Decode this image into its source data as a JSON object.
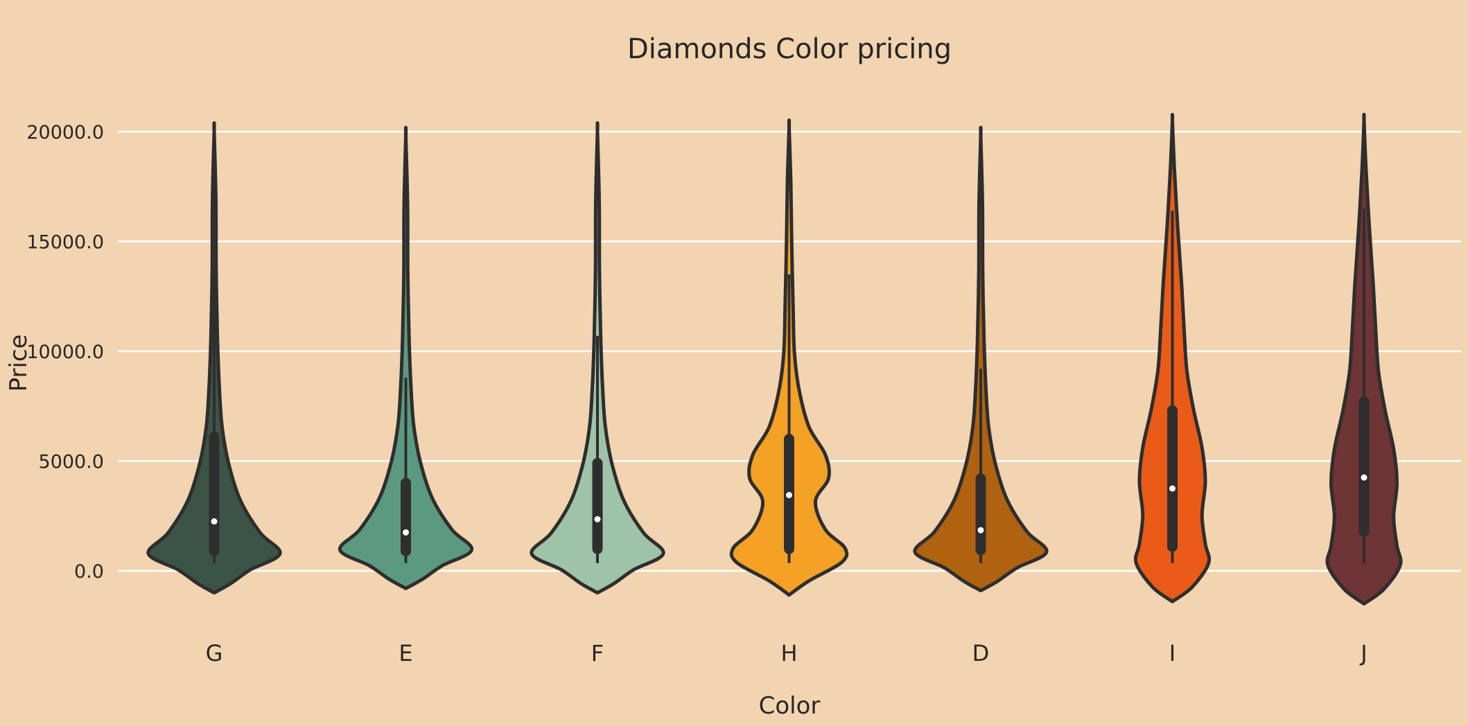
{
  "chart_data": {
    "type": "violin",
    "title": "Diamonds Color pricing",
    "xlabel": "Color",
    "ylabel": "Price",
    "ylim": [
      -3000,
      21500
    ],
    "yticks": [
      0,
      5000,
      10000,
      15000,
      20000
    ],
    "ytick_labels": [
      "0.0",
      "5000.0",
      "10000.0",
      "15000.0",
      "20000.0"
    ],
    "grid": true,
    "categories": [
      "G",
      "E",
      "F",
      "H",
      "D",
      "I",
      "J"
    ],
    "colors": [
      "#3c5446",
      "#5b9a81",
      "#9fc3a8",
      "#f4a125",
      "#b06210",
      "#ea5b17",
      "#6e3436"
    ],
    "series": [
      {
        "category": "G",
        "whisker_low": 350,
        "q1": 900,
        "median": 2250,
        "q3": 6100,
        "whisker_high": 13800,
        "min": -1000,
        "max": 20000
      },
      {
        "category": "E",
        "whisker_low": 350,
        "q1": 900,
        "median": 1750,
        "q3": 4000,
        "whisker_high": 8800,
        "min": -800,
        "max": 19800
      },
      {
        "category": "F",
        "whisker_low": 350,
        "q1": 1000,
        "median": 2350,
        "q3": 4900,
        "whisker_high": 10700,
        "min": -1000,
        "max": 20000
      },
      {
        "category": "H",
        "whisker_low": 350,
        "q1": 1000,
        "median": 3450,
        "q3": 6000,
        "whisker_high": 13500,
        "min": -1100,
        "max": 20200
      },
      {
        "category": "D",
        "whisker_low": 350,
        "q1": 950,
        "median": 1850,
        "q3": 4200,
        "whisker_high": 9200,
        "min": -900,
        "max": 19800
      },
      {
        "category": "I",
        "whisker_low": 350,
        "q1": 1100,
        "median": 3750,
        "q3": 7300,
        "whisker_high": 16400,
        "min": -1400,
        "max": 20500
      },
      {
        "category": "J",
        "whisker_low": 350,
        "q1": 1800,
        "median": 4250,
        "q3": 7700,
        "whisker_high": 16500,
        "min": -1500,
        "max": 20500
      }
    ]
  }
}
